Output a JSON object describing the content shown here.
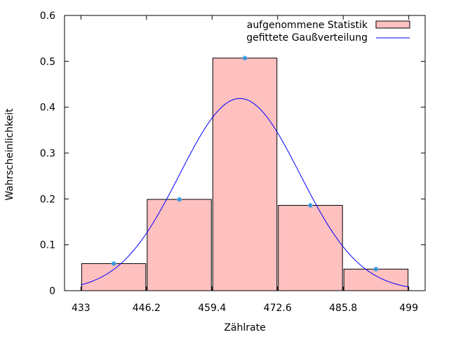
{
  "chart_data": {
    "type": "bar",
    "title": "",
    "xlabel": "Zählrate",
    "ylabel": "Wahrscheinlichkeit",
    "xlim": [
      429.7,
      502.3
    ],
    "ylim": [
      0,
      0.6
    ],
    "xticks": [
      433,
      446.2,
      459.4,
      472.6,
      485.8,
      499
    ],
    "xtick_labels": [
      "433",
      "446.2",
      "459.4",
      "472.6",
      "485.8",
      "499"
    ],
    "yticks": [
      0,
      0.1,
      0.2,
      0.3,
      0.4,
      0.5,
      0.6
    ],
    "ytick_labels": [
      "0",
      "0.1",
      "0.2",
      "0.3",
      "0.4",
      "0.5",
      "0.6"
    ],
    "grid": false,
    "legend_position": "top-right",
    "series": [
      {
        "name": "aufgenommene Statistik",
        "kind": "histogram",
        "bar_color": "#ffc0c0",
        "bar_edge_color": "#000000",
        "bins": [
          {
            "x0": 433.0,
            "x1": 446.2,
            "value": 0.059
          },
          {
            "x0": 446.2,
            "x1": 459.4,
            "value": 0.199
          },
          {
            "x0": 459.4,
            "x1": 472.6,
            "value": 0.507
          },
          {
            "x0": 472.6,
            "x1": 485.8,
            "value": 0.186
          },
          {
            "x0": 485.8,
            "x1": 499.0,
            "value": 0.047
          }
        ]
      },
      {
        "name": "gefittete Gaußverteilung",
        "kind": "gaussian-fit",
        "color": "#0000ff",
        "amplitude": 0.419,
        "mean": 465.0,
        "sigma": 12.1,
        "x_range": [
          433,
          499
        ]
      },
      {
        "kind": "points",
        "marker": "asterisk",
        "color": "#1e8fe0",
        "x": [
          439.6,
          452.8,
          466.0,
          479.2,
          492.4
        ],
        "y": [
          0.059,
          0.199,
          0.507,
          0.186,
          0.047
        ]
      }
    ]
  }
}
